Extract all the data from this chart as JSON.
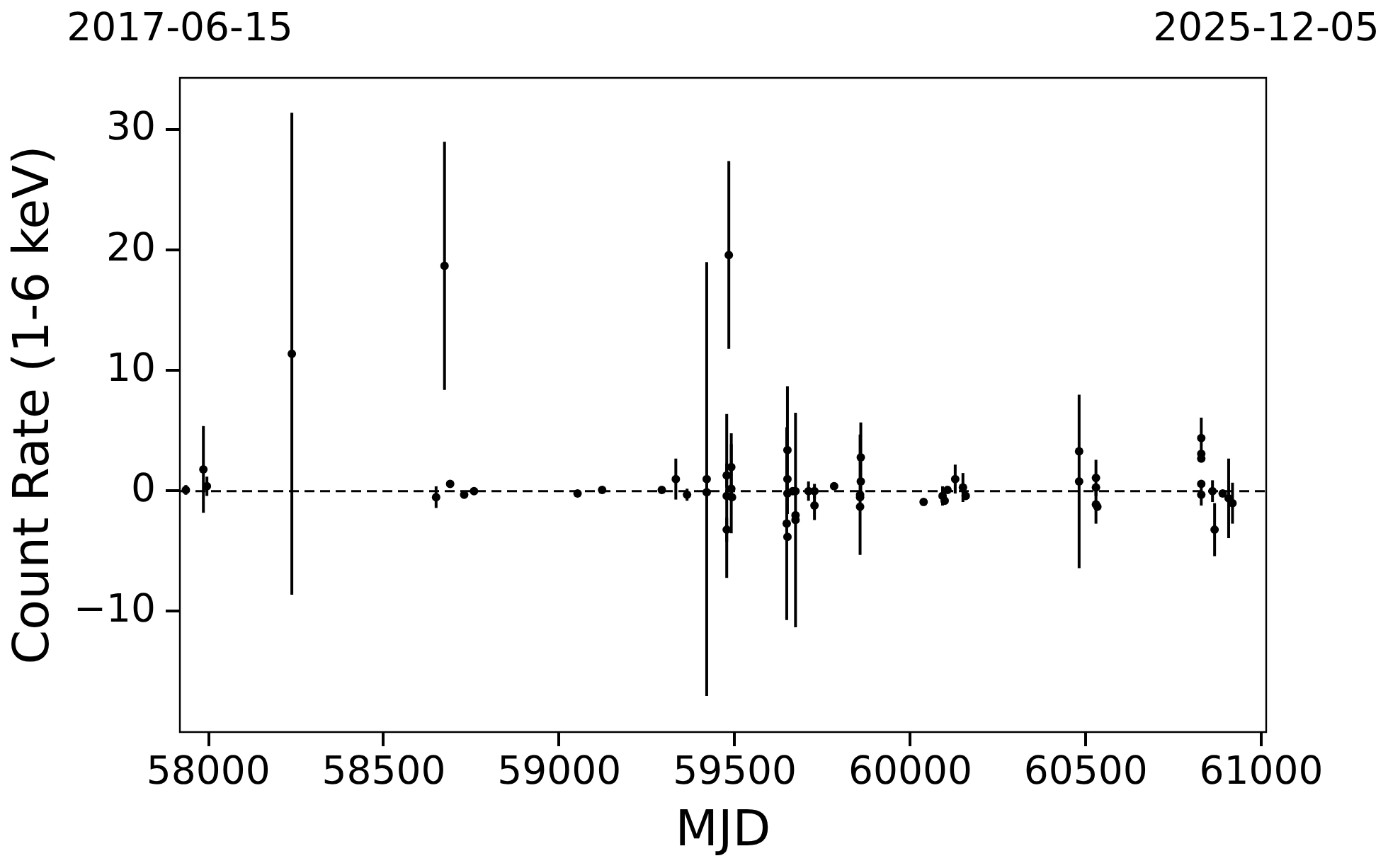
{
  "chart_data": {
    "type": "scatter",
    "xlabel": "MJD",
    "ylabel": "Count Rate (1-6 keV)",
    "color": "#000000",
    "marker": "circle",
    "grid": false,
    "legend": false,
    "x": [
      57936,
      57986,
      57996,
      58238,
      58649,
      58673,
      58689,
      58729,
      58757,
      59052,
      59122,
      59292,
      59332,
      59364,
      59420,
      59420,
      59477,
      59477,
      59477,
      59483,
      59490,
      59490,
      59492,
      59648,
      59650,
      59650,
      59650,
      59650,
      59665,
      59673,
      59673,
      59673,
      59710,
      59727,
      59727,
      59783,
      59857,
      59857,
      59857,
      59859,
      59859,
      60038,
      60092,
      60098,
      60106,
      60128,
      60150,
      60158,
      60481,
      60481,
      60529,
      60529,
      60529,
      60533,
      60829,
      60829,
      60829,
      60829,
      60829,
      60861,
      60867,
      60890,
      60907,
      60918
    ],
    "values": [
      0.1,
      1.8,
      0.4,
      11.4,
      -0.5,
      18.7,
      0.6,
      -0.3,
      0.0,
      -0.2,
      0.1,
      0.1,
      1.0,
      -0.3,
      1.0,
      -0.1,
      1.3,
      -0.4,
      -3.2,
      19.6,
      2.0,
      0.2,
      -0.5,
      -2.7,
      3.4,
      1.0,
      -0.2,
      -3.8,
      0.0,
      0.0,
      -2.0,
      -2.4,
      0.0,
      0.0,
      -1.2,
      0.4,
      -0.3,
      -0.5,
      -1.3,
      2.8,
      0.8,
      -0.9,
      -0.4,
      -0.8,
      0.1,
      1.0,
      0.3,
      -0.4,
      3.3,
      0.8,
      1.1,
      0.3,
      -1.1,
      -1.3,
      4.4,
      3.1,
      2.7,
      0.6,
      -0.3,
      0.0,
      -3.2,
      -0.2,
      -0.6,
      -1.0
    ],
    "errors": [
      0.4,
      3.6,
      0.8,
      20,
      0.9,
      10.3,
      null,
      null,
      null,
      null,
      null,
      null,
      1.7,
      0.5,
      18,
      null,
      1.0,
      6.8,
      1.0,
      7.8,
      2.8,
      3.7,
      null,
      8.0,
      5.3,
      null,
      null,
      null,
      null,
      null,
      null,
      8.9,
      0.8,
      0.6,
      1.2,
      null,
      5.0,
      null,
      null,
      2.9,
      null,
      null,
      0.8,
      null,
      null,
      1.2,
      1.2,
      null,
      null,
      7.2,
      1.5,
      null,
      1.6,
      null,
      1.7,
      null,
      null,
      null,
      0.9,
      0.9,
      2.2,
      null,
      3.3,
      1.7
    ],
    "xlim": [
      57919,
      61014
    ],
    "xticks": [
      58000,
      58500,
      59000,
      59500,
      60000,
      60500,
      61000
    ],
    "ylim": [
      -20,
      34.3
    ],
    "yticks": [
      {
        "value": -10,
        "label": "−10"
      },
      0,
      10,
      20,
      30
    ],
    "x2lim": [
      "2017-06-15",
      "2025-12-05"
    ],
    "x2ticks": [
      "2017-06-15",
      "2025-12-05"
    ],
    "ref_lines": [
      {
        "axis": "y",
        "value": 0,
        "color": "#000000",
        "line_style": "dashed"
      }
    ]
  }
}
